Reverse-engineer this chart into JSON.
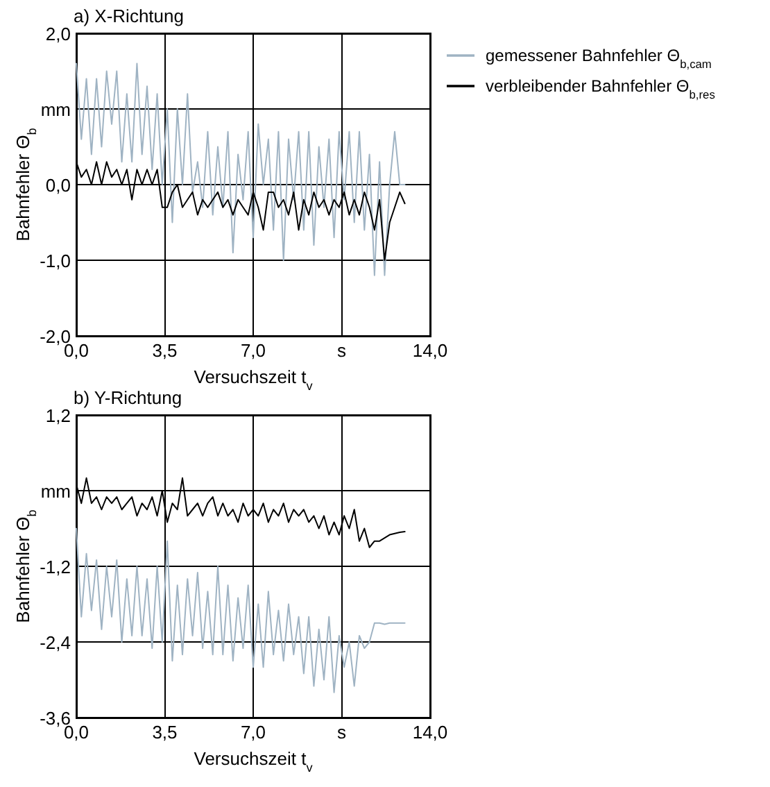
{
  "chart_data": [
    {
      "type": "line",
      "title": "a) X-Richtung",
      "xlabel": "Versuchszeit t$_{v}$",
      "ylabel": "Bahnfehler Θ$_{b}$",
      "grid": true,
      "legend": "right",
      "line_style": "solid",
      "marker": "none",
      "xlim": [
        0,
        14
      ],
      "ylim": [
        -2,
        2
      ],
      "xticks": [
        {
          "value": 0,
          "label": "0,0"
        },
        {
          "value": 3.5,
          "label": "3,5"
        },
        {
          "value": 7,
          "label": "7,0"
        },
        {
          "value": 10.5,
          "label": "s"
        },
        {
          "value": 14,
          "label": "14,0"
        }
      ],
      "yticks": [
        {
          "value": -2,
          "label": "-2,0"
        },
        {
          "value": -1,
          "label": "-1,0"
        },
        {
          "value": 0,
          "label": "0,0"
        },
        {
          "value": 1,
          "label": "mm"
        },
        {
          "value": 2,
          "label": "2,0"
        }
      ],
      "x": [
        0,
        0.2,
        0.4,
        0.6,
        0.8,
        1,
        1.2,
        1.4,
        1.6,
        1.8,
        2,
        2.2,
        2.4,
        2.6,
        2.8,
        3,
        3.2,
        3.4,
        3.6,
        3.8,
        4,
        4.2,
        4.4,
        4.6,
        4.8,
        5,
        5.2,
        5.4,
        5.6,
        5.8,
        6,
        6.2,
        6.4,
        6.6,
        6.8,
        7,
        7.2,
        7.4,
        7.6,
        7.8,
        8,
        8.2,
        8.4,
        8.6,
        8.8,
        9,
        9.2,
        9.4,
        9.6,
        9.8,
        10,
        10.2,
        10.4,
        10.6,
        10.8,
        11,
        11.2,
        11.4,
        11.6,
        11.8,
        12,
        12.2,
        12.4,
        12.6,
        12.8,
        13
      ],
      "series": [
        {
          "name": "gemessener Bahnfehler Θ$_{b,cam}$",
          "color": "#9fb3c3",
          "values": [
            1.6,
            0.6,
            1.4,
            0.4,
            1.4,
            0.5,
            1.5,
            0.8,
            1.5,
            0.3,
            1.2,
            0.3,
            1.6,
            0.4,
            1.3,
            0.2,
            1.2,
            0.0,
            1.0,
            -0.5,
            1.0,
            0.0,
            1.2,
            -0.1,
            0.3,
            -0.3,
            0.7,
            -0.4,
            0.5,
            -0.3,
            0.7,
            -0.9,
            0.4,
            -0.2,
            0.7,
            -0.7,
            0.8,
            0.0,
            0.6,
            -0.6,
            0.7,
            -1.0,
            0.6,
            -0.2,
            0.7,
            -0.6,
            0.7,
            -0.8,
            0.5,
            -0.3,
            0.6,
            -0.7,
            0.7,
            -0.2,
            0.7,
            -0.5,
            0.7,
            -0.6,
            0.4,
            -1.2,
            0.3,
            -1.2,
            0.0,
            0.7,
            0.0,
            0.0
          ]
        },
        {
          "name": "verbleibender Bahnfehler Θ$_{b,res}$",
          "color": "#000000",
          "values": [
            0.3,
            0.1,
            0.2,
            0.0,
            0.3,
            0.0,
            0.3,
            0.1,
            0.2,
            0.0,
            0.2,
            -0.2,
            0.2,
            0.0,
            0.2,
            0.0,
            0.2,
            -0.3,
            -0.3,
            -0.1,
            0.0,
            -0.3,
            -0.2,
            -0.1,
            -0.4,
            -0.2,
            -0.3,
            -0.2,
            -0.1,
            -0.3,
            -0.2,
            -0.4,
            -0.2,
            -0.3,
            -0.4,
            -0.1,
            -0.3,
            -0.6,
            -0.1,
            -0.1,
            -0.3,
            -0.2,
            -0.4,
            -0.1,
            -0.6,
            -0.2,
            -0.4,
            -0.1,
            -0.3,
            -0.2,
            -0.4,
            -0.2,
            -0.3,
            -0.1,
            -0.4,
            -0.2,
            -0.4,
            -0.1,
            -0.3,
            -0.6,
            -0.2,
            -1.0,
            -0.5,
            -0.3,
            -0.1,
            -0.25
          ]
        }
      ]
    },
    {
      "type": "line",
      "title": "b) Y-Richtung",
      "xlabel": "Versuchszeit t$_{v}$",
      "ylabel": "Bahnfehler Θ$_{b}$",
      "grid": true,
      "line_style": "solid",
      "marker": "none",
      "xlim": [
        0,
        14
      ],
      "ylim": [
        -3.6,
        1.2
      ],
      "xticks": [
        {
          "value": 0,
          "label": "0,0"
        },
        {
          "value": 3.5,
          "label": "3,5"
        },
        {
          "value": 7,
          "label": "7,0"
        },
        {
          "value": 10.5,
          "label": "s"
        },
        {
          "value": 14,
          "label": "14,0"
        }
      ],
      "yticks": [
        {
          "value": -3.6,
          "label": "-3,6"
        },
        {
          "value": -2.4,
          "label": "-2,4"
        },
        {
          "value": -1.2,
          "label": "-1,2"
        },
        {
          "value": 0,
          "label": "mm"
        },
        {
          "value": 1.2,
          "label": "1,2"
        }
      ],
      "x": [
        0,
        0.2,
        0.4,
        0.6,
        0.8,
        1,
        1.2,
        1.4,
        1.6,
        1.8,
        2,
        2.2,
        2.4,
        2.6,
        2.8,
        3,
        3.2,
        3.4,
        3.6,
        3.8,
        4,
        4.2,
        4.4,
        4.6,
        4.8,
        5,
        5.2,
        5.4,
        5.6,
        5.8,
        6,
        6.2,
        6.4,
        6.6,
        6.8,
        7,
        7.2,
        7.4,
        7.6,
        7.8,
        8,
        8.2,
        8.4,
        8.6,
        8.8,
        9,
        9.2,
        9.4,
        9.6,
        9.8,
        10,
        10.2,
        10.4,
        10.6,
        10.8,
        11,
        11.2,
        11.4,
        11.6,
        11.8,
        12,
        12.2,
        12.4,
        12.6,
        12.8,
        13
      ],
      "series": [
        {
          "color": "#9fb3c3",
          "values": [
            -0.6,
            -2.0,
            -1.0,
            -1.9,
            -1.1,
            -2.2,
            -1.2,
            -2.0,
            -1.1,
            -2.4,
            -1.4,
            -2.3,
            -1.2,
            -2.3,
            -1.4,
            -2.5,
            -1.2,
            -2.4,
            -0.8,
            -2.7,
            -1.5,
            -2.6,
            -1.4,
            -2.3,
            -1.3,
            -2.5,
            -1.6,
            -2.6,
            -1.2,
            -2.6,
            -1.5,
            -2.7,
            -1.7,
            -2.5,
            -1.5,
            -2.8,
            -1.8,
            -2.8,
            -1.6,
            -2.6,
            -1.9,
            -2.7,
            -1.8,
            -2.6,
            -2.0,
            -2.9,
            -2.0,
            -3.1,
            -2.2,
            -3.0,
            -2.0,
            -3.2,
            -2.3,
            -2.8,
            -2.4,
            -3.1,
            -2.3,
            -2.5,
            -2.4,
            -2.1,
            -2.1,
            -2.12,
            -2.1,
            -2.1,
            -2.1,
            -2.1
          ]
        },
        {
          "color": "#000000",
          "values": [
            0.1,
            -0.2,
            0.2,
            -0.2,
            -0.1,
            -0.3,
            -0.1,
            -0.2,
            -0.1,
            -0.3,
            -0.2,
            -0.1,
            -0.4,
            -0.2,
            -0.3,
            -0.1,
            -0.4,
            0.0,
            -0.5,
            -0.2,
            -0.3,
            0.2,
            -0.4,
            -0.3,
            -0.2,
            -0.4,
            -0.2,
            -0.1,
            -0.4,
            -0.2,
            -0.4,
            -0.3,
            -0.5,
            -0.2,
            -0.4,
            -0.3,
            -0.4,
            -0.2,
            -0.5,
            -0.3,
            -0.4,
            -0.2,
            -0.5,
            -0.3,
            -0.4,
            -0.3,
            -0.5,
            -0.4,
            -0.6,
            -0.4,
            -0.7,
            -0.5,
            -0.7,
            -0.4,
            -0.6,
            -0.3,
            -0.8,
            -0.6,
            -0.9,
            -0.8,
            -0.8,
            -0.75,
            -0.7,
            -0.68,
            -0.66,
            -0.65
          ]
        }
      ]
    }
  ]
}
